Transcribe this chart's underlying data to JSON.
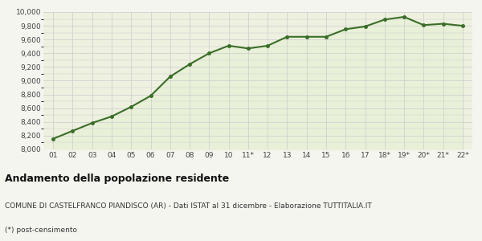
{
  "x_labels": [
    "01",
    "02",
    "03",
    "04",
    "05",
    "06",
    "07",
    "08",
    "09",
    "10",
    "11*",
    "12",
    "13",
    "14",
    "15",
    "16",
    "17",
    "18*",
    "19*",
    "20*",
    "21*",
    "22*"
  ],
  "y_values": [
    8155,
    8270,
    8385,
    8480,
    8620,
    8780,
    9060,
    9240,
    9400,
    9510,
    9470,
    9510,
    9640,
    9640,
    9640,
    9750,
    9790,
    9890,
    9930,
    9810,
    9830,
    9800
  ],
  "line_color": "#3a6e28",
  "fill_color": "#e8f0d8",
  "marker_color": "#3a6e28",
  "marker_size": 3,
  "line_width": 1.5,
  "ylim": [
    8000,
    10000
  ],
  "yticks": [
    8000,
    8200,
    8400,
    8600,
    8800,
    9000,
    9200,
    9400,
    9600,
    9800,
    10000
  ],
  "grid_color": "#cccccc",
  "bg_color": "#f5f5f0",
  "plot_bg_color": "#eef0e0",
  "title": "Andamento della popolazione residente",
  "subtitle": "COMUNE DI CASTELFRANCO PIANDISCÒ (AR) - Dati ISTAT al 31 dicembre - Elaborazione TUTTITALIA.IT",
  "footnote": "(*) post-censimento",
  "title_fontsize": 9,
  "subtitle_fontsize": 6.5,
  "footnote_fontsize": 6.5,
  "tick_fontsize": 6.5,
  "axis_label_color": "#444444"
}
